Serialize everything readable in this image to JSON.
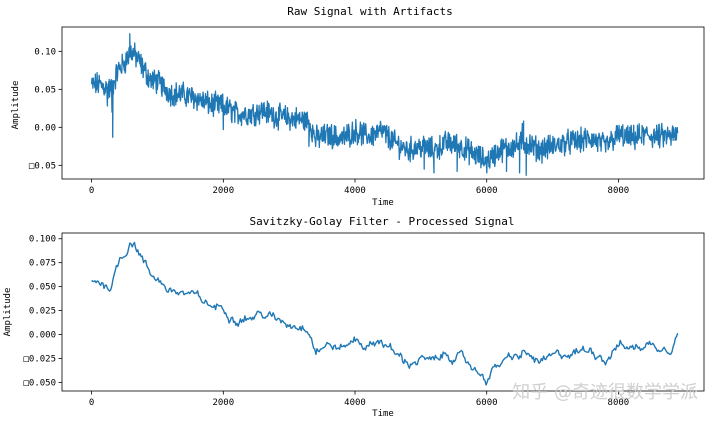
{
  "chart_data": [
    {
      "type": "line",
      "title": "Raw Signal with Artifacts",
      "xlabel": "Time",
      "ylabel": "Amplitude",
      "xlim": [
        -450,
        9300
      ],
      "ylim": [
        -0.068,
        0.132
      ],
      "xticks": [
        0,
        2000,
        4000,
        6000,
        8000
      ],
      "xtick_labels": [
        "0",
        "2000",
        "4000",
        "6000",
        "8000"
      ],
      "yticks": [
        -0.05,
        0.0,
        0.05,
        0.1
      ],
      "ytick_labels": [
        "□0.05",
        "0.00",
        "0.05",
        "0.10"
      ],
      "grid": false,
      "series": [
        {
          "color": "#1f77b4",
          "style": "noisy",
          "x": [
            0,
            100,
            200,
            300,
            400,
            500,
            600,
            700,
            800,
            900,
            1000,
            1200,
            1400,
            1600,
            1800,
            2000,
            2200,
            2400,
            2600,
            2800,
            3000,
            3200,
            3300,
            3400,
            3600,
            3800,
            4000,
            4200,
            4400,
            4600,
            4800,
            5000,
            5200,
            5400,
            5600,
            5800,
            6000,
            6200,
            6400,
            6600,
            6800,
            7000,
            7200,
            7400,
            7600,
            7800,
            8000,
            8200,
            8400,
            8600,
            8800,
            8900
          ],
          "y": [
            0.055,
            0.057,
            0.053,
            0.05,
            0.075,
            0.085,
            0.1,
            0.09,
            0.075,
            0.062,
            0.06,
            0.045,
            0.043,
            0.038,
            0.03,
            0.028,
            0.018,
            0.018,
            0.022,
            0.015,
            0.012,
            0.01,
            0.008,
            -0.015,
            -0.01,
            -0.015,
            -0.005,
            -0.012,
            -0.005,
            -0.02,
            -0.03,
            -0.025,
            -0.03,
            -0.02,
            -0.025,
            -0.035,
            -0.045,
            -0.03,
            -0.025,
            -0.02,
            -0.03,
            -0.025,
            -0.02,
            -0.018,
            -0.015,
            -0.025,
            -0.01,
            -0.015,
            -0.01,
            -0.012,
            -0.012,
            -0.01
          ],
          "artifacts": [
            {
              "x": 240,
              "y": 0.028
            },
            {
              "x": 250,
              "y": 0.038
            },
            {
              "x": 260,
              "y": 0.06
            },
            {
              "x": 300,
              "y": 0.055
            },
            {
              "x": 310,
              "y": 0.02
            },
            {
              "x": 320,
              "y": -0.013
            },
            {
              "x": 330,
              "y": 0.05
            },
            {
              "x": 570,
              "y": 0.105
            },
            {
              "x": 580,
              "y": 0.123
            },
            {
              "x": 590,
              "y": 0.098
            },
            {
              "x": 2000,
              "y": -0.003
            },
            {
              "x": 3300,
              "y": -0.025
            },
            {
              "x": 3400,
              "y": -0.022
            },
            {
              "x": 5050,
              "y": -0.055
            },
            {
              "x": 5200,
              "y": -0.06
            },
            {
              "x": 5550,
              "y": -0.058
            },
            {
              "x": 6300,
              "y": -0.058
            },
            {
              "x": 6500,
              "y": -0.06
            },
            {
              "x": 6520,
              "y": -0.012
            },
            {
              "x": 6540,
              "y": 0.005
            },
            {
              "x": 6560,
              "y": 0.008
            },
            {
              "x": 6600,
              "y": -0.063
            }
          ]
        }
      ]
    },
    {
      "type": "line",
      "title": "Savitzky-Golay Filter - Processed Signal",
      "xlabel": "Time",
      "ylabel": "Amplitude",
      "xlim": [
        -450,
        9300
      ],
      "ylim": [
        -0.059,
        0.106
      ],
      "xticks": [
        0,
        2000,
        4000,
        6000,
        8000
      ],
      "xtick_labels": [
        "0",
        "2000",
        "4000",
        "6000",
        "8000"
      ],
      "yticks": [
        -0.05,
        -0.025,
        0.0,
        0.025,
        0.05,
        0.075,
        0.1
      ],
      "ytick_labels": [
        "□0.050",
        "□0.025",
        "0.000",
        "0.025",
        "0.050",
        "0.075",
        "0.100"
      ],
      "grid": false,
      "series": [
        {
          "color": "#1f77b4",
          "style": "smooth",
          "x": [
            0,
            100,
            200,
            300,
            400,
            500,
            600,
            700,
            800,
            900,
            1000,
            1200,
            1400,
            1600,
            1800,
            2000,
            2200,
            2400,
            2600,
            2800,
            3000,
            3200,
            3300,
            3400,
            3600,
            3800,
            4000,
            4200,
            4400,
            4600,
            4800,
            5000,
            5200,
            5400,
            5600,
            5800,
            6000,
            6200,
            6400,
            6600,
            6800,
            7000,
            7200,
            7400,
            7600,
            7800,
            8000,
            8200,
            8400,
            8600,
            8800,
            8900
          ],
          "y": [
            0.055,
            0.057,
            0.053,
            0.05,
            0.075,
            0.085,
            0.1,
            0.09,
            0.075,
            0.062,
            0.06,
            0.045,
            0.043,
            0.038,
            0.03,
            0.028,
            0.018,
            0.018,
            0.022,
            0.015,
            0.012,
            0.01,
            0.008,
            -0.015,
            -0.01,
            -0.015,
            -0.005,
            -0.012,
            -0.005,
            -0.02,
            -0.03,
            -0.025,
            -0.03,
            -0.02,
            -0.025,
            -0.035,
            -0.045,
            -0.03,
            -0.025,
            -0.02,
            -0.03,
            -0.025,
            -0.02,
            -0.018,
            -0.015,
            -0.025,
            -0.01,
            -0.015,
            -0.01,
            -0.012,
            -0.012,
            0.005
          ]
        }
      ]
    }
  ],
  "watermark": "知乎 @奇迹很数学学派"
}
